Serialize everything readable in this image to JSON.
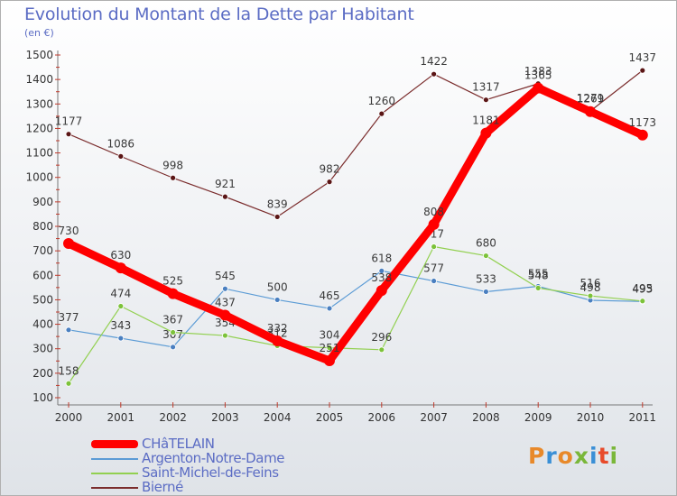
{
  "title": "Evolution du Montant de la Dette par Habitant",
  "subtitle": "(en €)",
  "logo": {
    "text": "Proxiti",
    "colors": [
      "#e8892a",
      "#3a8fd6",
      "#e8892a",
      "#7ab73a",
      "#3a8fd6",
      "#e84a2a",
      "#7ab73a"
    ]
  },
  "legend": [
    {
      "label": "CHâTELAIN",
      "color": "#ff0000",
      "width": "thick"
    },
    {
      "label": "Argenton-Notre-Dame",
      "color": "#5b9bd5",
      "width": "thin"
    },
    {
      "label": "Saint-Michel-de-Feins",
      "color": "#92d050",
      "width": "thin"
    },
    {
      "label": "Bierné",
      "color": "#7b2d2d",
      "width": "thin"
    }
  ],
  "chart_data": {
    "type": "line",
    "x": [
      "2000",
      "2001",
      "2002",
      "2003",
      "2004",
      "2005",
      "2006",
      "2007",
      "2008",
      "2009",
      "2010",
      "2011"
    ],
    "ylim": [
      100,
      1500
    ],
    "yticks": [
      100,
      200,
      300,
      400,
      500,
      600,
      700,
      800,
      900,
      1000,
      1100,
      1200,
      1300,
      1400,
      1500
    ],
    "grid": false,
    "series": [
      {
        "name": "Bierné",
        "color": "#7b2d2d",
        "marker": "#5a1515",
        "values": [
          1177,
          1086,
          998,
          921,
          839,
          982,
          1260,
          1422,
          1317,
          1383,
          1271,
          1437
        ]
      },
      {
        "name": "Argenton-Notre-Dame",
        "color": "#5b9bd5",
        "marker": "#4a7fc0",
        "values": [
          377,
          343,
          307,
          545,
          500,
          465,
          618,
          577,
          533,
          555,
          498,
          493
        ]
      },
      {
        "name": "Saint-Michel-de-Feins",
        "color": "#92d050",
        "marker": "#7cc23a",
        "values": [
          158,
          474,
          367,
          354,
          312,
          304,
          296,
          717,
          680,
          548,
          516,
          495
        ]
      },
      {
        "name": "CHâTELAIN",
        "color": "#ff0000",
        "marker": "#ff0000",
        "values": [
          730,
          630,
          525,
          437,
          332,
          251,
          538,
          808,
          1181,
          1365,
          1269,
          1173
        ]
      }
    ]
  }
}
